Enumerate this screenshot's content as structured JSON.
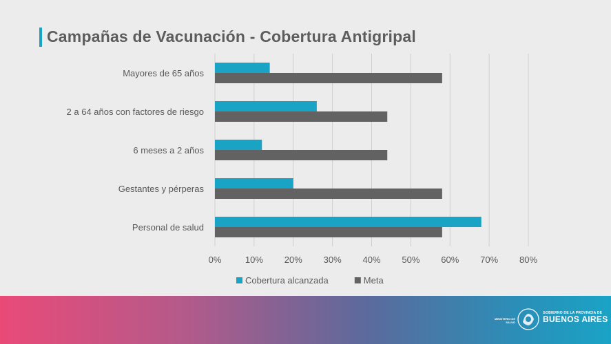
{
  "slide": {
    "title": "Campañas de Vacunación - Cobertura Antigripal"
  },
  "footer": {
    "ministry_line1": "MINISTERIO DE",
    "ministry_line2": "SALUD",
    "gov_line1": "GOBIERNO DE LA PROVINCIA DE",
    "gov_line2": "BUENOS AIRES",
    "seal_icon": "provincial-seal-icon"
  },
  "colors": {
    "accent": "#19a4c6",
    "meta": "#626262",
    "title": "#5d5d5d"
  },
  "chart_data": {
    "type": "bar",
    "orientation": "horizontal",
    "title": "",
    "xlabel": "",
    "ylabel": "",
    "categories": [
      "Mayores de 65 años",
      "2 a 64 años con factores de riesgo",
      "6 meses a 2 años",
      "Gestantes y pérperas",
      "Personal de salud"
    ],
    "series": [
      {
        "name": "Cobertura alcanzada",
        "color": "#19a4c6",
        "values": [
          14,
          26,
          12,
          20,
          68
        ]
      },
      {
        "name": "Meta",
        "color": "#626262",
        "values": [
          58,
          44,
          44,
          58,
          58
        ]
      }
    ],
    "xlim": [
      0,
      80
    ],
    "ticks": [
      "0%",
      "10%",
      "20%",
      "30%",
      "40%",
      "50%",
      "60%",
      "70%",
      "80%"
    ],
    "tick_values": [
      0,
      10,
      20,
      30,
      40,
      50,
      60,
      70,
      80
    ],
    "grid": true,
    "legend_position": "bottom"
  }
}
